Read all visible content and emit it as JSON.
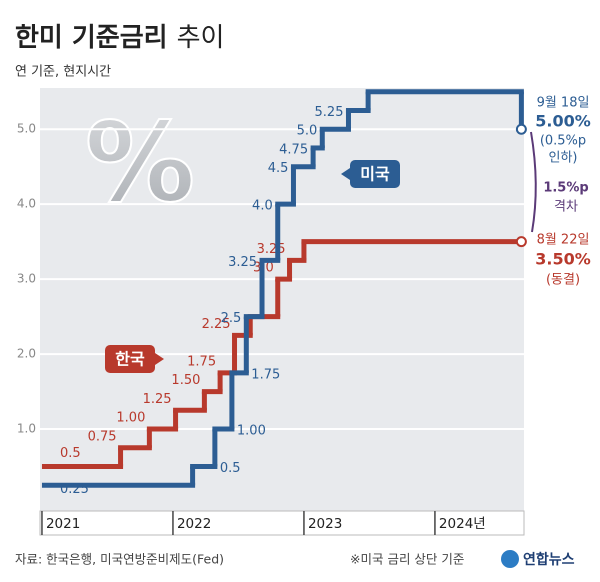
{
  "chart_data": {
    "type": "step",
    "title": "한미 기준금리",
    "title_suffix": "추이",
    "subtitle": "연 기준, 현지시간",
    "watermark": "%",
    "xlim": [
      2020.985,
      2024.68
    ],
    "xticks": [
      2021,
      2022,
      2023,
      {
        "value": 2024,
        "label": "2024년"
      }
    ],
    "ylim": [
      0,
      5.55
    ],
    "yticks": [
      {
        "value": 1,
        "label": "1.0"
      },
      {
        "value": 2,
        "label": "2.0"
      },
      {
        "value": 3,
        "label": "3.0"
      },
      {
        "value": 4,
        "label": "4.0"
      },
      {
        "value": 5,
        "label": "5.0"
      }
    ],
    "grid": true,
    "series": [
      {
        "name": "한국",
        "color": "#b8392c",
        "x": [
          2021,
          2021.6,
          2021.82,
          2022.02,
          2022.24,
          2022.36,
          2022.47,
          2022.59,
          2022.8,
          2022.89,
          2023.0,
          2024.66
        ],
        "values": [
          0.5,
          0.75,
          1,
          1.25,
          1.5,
          1.75,
          2.25,
          2.5,
          3,
          3.25,
          3.5,
          3.5
        ],
        "value_labels": [
          "0.5",
          "0.75",
          "1.00",
          "1.25",
          "1.50",
          "1.75",
          "2.25",
          null,
          "3.0",
          "3.25",
          null,
          null
        ]
      },
      {
        "name": "미국",
        "color": "#2c5d93",
        "x": [
          2021,
          2022.15,
          2022.32,
          2022.45,
          2022.56,
          2022.68,
          2022.8,
          2022.92,
          2023.07,
          2023.14,
          2023.34,
          2023.49,
          2024.66
        ],
        "values": [
          0.25,
          0.5,
          1,
          1.75,
          2.5,
          3.25,
          4,
          4.5,
          4.75,
          5,
          5.25,
          5.5,
          5
        ],
        "value_labels": [
          "0.25",
          "0.5",
          "1.00",
          "1.75",
          "2.5",
          "3.25",
          "4.0",
          "4.5",
          "4.75",
          "5.0",
          "5.25",
          null,
          null
        ]
      }
    ],
    "annotations": {
      "us_date": "9월 18일",
      "us_rate": "5.00%",
      "us_note_1": "(0.5%p",
      "us_note_2": "인하)",
      "gap": "1.5%p",
      "gap_note": "격차",
      "kr_date": "8월 22일",
      "kr_rate": "3.50%",
      "kr_note": "(동결)"
    },
    "source": "자료: 한국은행, 미국연방준비제도(Fed)",
    "footnote": "※미국 금리 상단 기준",
    "logo": "연합뉴스"
  }
}
